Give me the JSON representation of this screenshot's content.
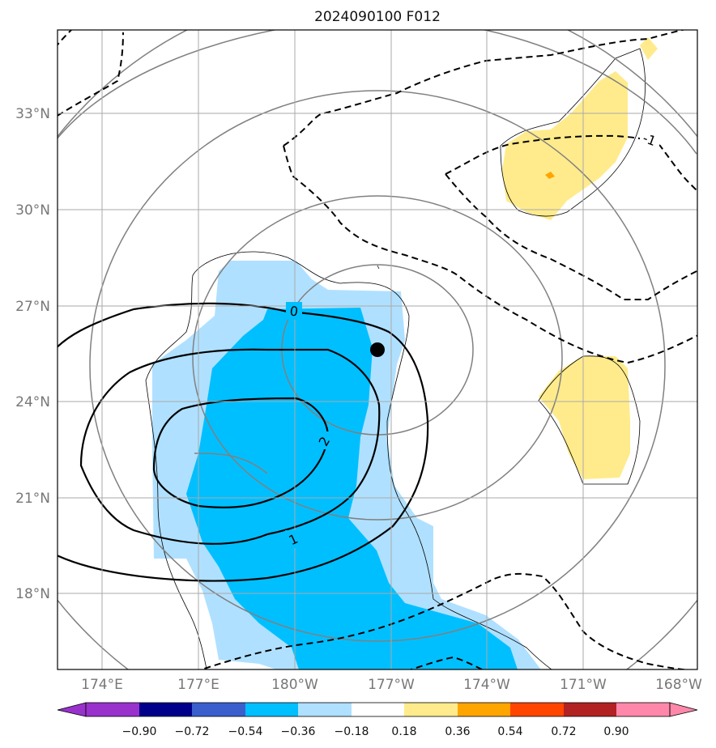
{
  "title": "2024090100 F012",
  "map": {
    "lon_ticks": [
      "174°E",
      "177°E",
      "180°W",
      "177°W",
      "174°W",
      "171°W",
      "168°W"
    ],
    "lat_ticks": [
      "33°N",
      "30°N",
      "27°N",
      "24°N",
      "21°N",
      "18°N"
    ],
    "lon_range": [
      172.6,
      192.6
    ],
    "lat_range": [
      15.6,
      35.6
    ],
    "grid": true,
    "center_marker": {
      "lon": 182.6,
      "lat": 25.6
    }
  },
  "contour_labels": {
    "zero": "0",
    "one": "1",
    "two": "2",
    "neg_one": "-1"
  },
  "colorbar": {
    "labels": [
      "−0.90",
      "−0.72",
      "−0.54",
      "−0.36",
      "−0.18",
      "0.18",
      "0.36",
      "0.54",
      "0.72",
      "0.90"
    ],
    "colors": [
      "#9932cc",
      "#00008b",
      "#3a5fcd",
      "#00bfff",
      "#b0e0ff",
      "#ffffff",
      "#ffeb8c",
      "#ffa500",
      "#ff4500",
      "#b22222",
      "#ff88aa"
    ]
  }
}
